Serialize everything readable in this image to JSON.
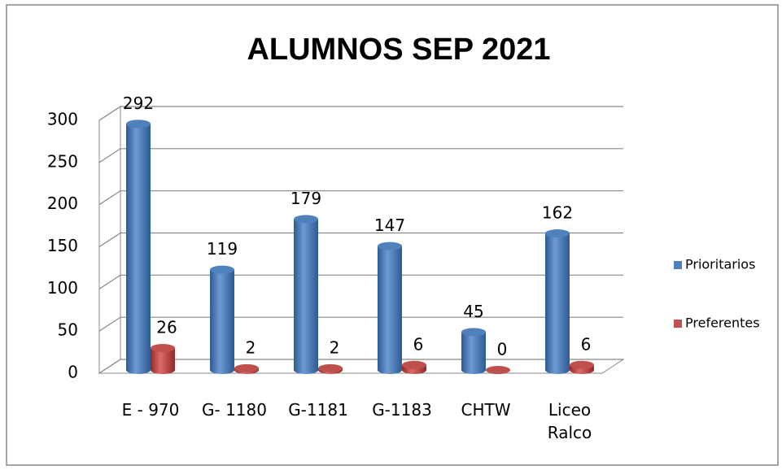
{
  "chart_data": {
    "type": "bar",
    "title": "ALUMNOS SEP 2021",
    "categories": [
      "E - 970",
      "G- 1180",
      "G-1181",
      "G-1183",
      "CHTW",
      "Liceo Ralco"
    ],
    "series": [
      {
        "name": "Prioritarios",
        "color": "#4f81bd",
        "values": [
          292,
          119,
          179,
          147,
          45,
          162
        ]
      },
      {
        "name": "Preferentes",
        "color": "#c0504d",
        "values": [
          26,
          2,
          2,
          6,
          0,
          6
        ]
      }
    ],
    "ylim": [
      0,
      300
    ],
    "yticks": [
      0,
      50,
      100,
      150,
      200,
      250,
      300
    ],
    "grid": true,
    "legend": "right"
  }
}
